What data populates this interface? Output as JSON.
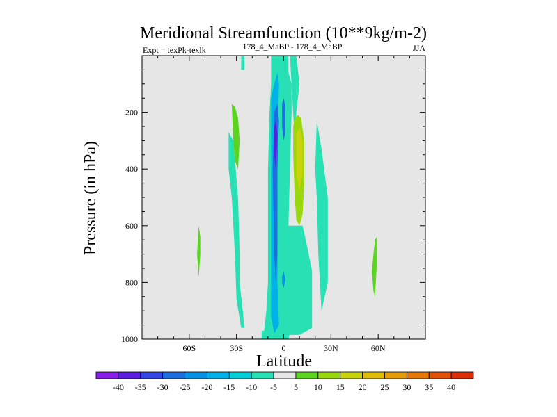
{
  "chart_data": {
    "type": "heatmap",
    "title": "Meridional Streamfunction (10**9kg/m-2)",
    "subtitle_left": "Expt = texPk-texlk",
    "subtitle_center": "178_4_MaBP - 178_4_MaBP",
    "subtitle_right": "JJA",
    "xlabel": "Latitude",
    "ylabel": "Pressure (in hPa)",
    "xlim": [
      -90,
      90
    ],
    "ylim": [
      1000,
      0
    ],
    "x_ticks": [
      {
        "value": -60,
        "label": "60S"
      },
      {
        "value": -30,
        "label": "30S"
      },
      {
        "value": 0,
        "label": "0"
      },
      {
        "value": 30,
        "label": "30N"
      },
      {
        "value": 60,
        "label": "60N"
      }
    ],
    "y_ticks": [
      {
        "value": 200,
        "label": "200"
      },
      {
        "value": 400,
        "label": "400"
      },
      {
        "value": 600,
        "label": "600"
      },
      {
        "value": 800,
        "label": "800"
      },
      {
        "value": 1000,
        "label": "1000"
      }
    ],
    "background_color": "#e6e6e6",
    "colorbar": {
      "levels": [
        -40,
        -35,
        -30,
        -25,
        -20,
        -15,
        -10,
        -5,
        5,
        10,
        15,
        20,
        25,
        30,
        35,
        40
      ],
      "labels": [
        "-40",
        "-35",
        "-30",
        "-25",
        "-20",
        "-15",
        "-10",
        "-5",
        "5",
        "10",
        "15",
        "20",
        "25",
        "30",
        "35",
        "40"
      ],
      "colors": [
        "#8a1de8",
        "#5b1ee0",
        "#3446e6",
        "#1d6fe0",
        "#0592e6",
        "#00b2e8",
        "#00cfd8",
        "#27e0b4",
        "#e6e6e6",
        "#5ad41e",
        "#9ad80e",
        "#c8d30c",
        "#e0bb08",
        "#e69c08",
        "#e67808",
        "#e45208",
        "#de2e08"
      ]
    },
    "regions": [
      {
        "name": "central-southern-band",
        "level": -5,
        "points": [
          [
            -13,
            1000
          ],
          [
            -11,
            900
          ],
          [
            -10,
            800
          ],
          [
            -10,
            600
          ],
          [
            -10,
            400
          ],
          [
            -9,
            200
          ],
          [
            -8,
            100
          ],
          [
            -8,
            0
          ],
          [
            3,
            0
          ],
          [
            3,
            60
          ],
          [
            5,
            100
          ],
          [
            5,
            200
          ],
          [
            4,
            400
          ],
          [
            3,
            600
          ],
          [
            4,
            800
          ],
          [
            5,
            950
          ],
          [
            3,
            1000
          ]
        ]
      },
      {
        "name": "tail-top",
        "level": -5,
        "points": [
          [
            -27,
            0
          ],
          [
            -25,
            0
          ],
          [
            -25,
            50
          ],
          [
            -27,
            50
          ]
        ]
      },
      {
        "name": "tail-bottom-left",
        "level": -5,
        "points": [
          [
            -14,
            1000
          ],
          [
            -8,
            1000
          ],
          [
            -8,
            970
          ],
          [
            -14,
            970
          ]
        ]
      },
      {
        "name": "broad-north-ns",
        "level": -5,
        "points": [
          [
            0,
            600
          ],
          [
            12,
            600
          ],
          [
            14,
            650
          ],
          [
            18,
            760
          ],
          [
            18,
            850
          ],
          [
            18,
            960
          ],
          [
            10,
            985
          ],
          [
            2,
            985
          ]
        ]
      },
      {
        "name": "south-strip",
        "level": -5,
        "points": [
          [
            -35,
            270
          ],
          [
            -32,
            300
          ],
          [
            -29,
            500
          ],
          [
            -28,
            700
          ],
          [
            -28,
            800
          ],
          [
            -26,
            900
          ],
          [
            -25,
            960
          ],
          [
            -27,
            960
          ],
          [
            -30,
            860
          ],
          [
            -31,
            700
          ],
          [
            -33,
            500
          ],
          [
            -35,
            400
          ]
        ]
      },
      {
        "name": "north-wing-upper",
        "level": -5,
        "points": [
          [
            4,
            0
          ],
          [
            8,
            0
          ],
          [
            10,
            100
          ],
          [
            8,
            200
          ],
          [
            7,
            300
          ]
        ]
      },
      {
        "name": "north-strip-right",
        "level": -5,
        "points": [
          [
            21,
            230
          ],
          [
            24,
            330
          ],
          [
            28,
            500
          ],
          [
            28,
            700
          ],
          [
            28,
            800
          ],
          [
            26,
            850
          ],
          [
            24,
            900
          ],
          [
            22,
            700
          ],
          [
            21,
            500
          ],
          [
            20,
            400
          ]
        ]
      },
      {
        "name": "core-mid",
        "level": -15,
        "points": [
          [
            -8,
            150
          ],
          [
            -6,
            100
          ],
          [
            -4,
            60
          ],
          [
            -3,
            100
          ],
          [
            -4,
            300
          ],
          [
            -4,
            800
          ],
          [
            -3,
            950
          ],
          [
            -6,
            980
          ],
          [
            -8,
            920
          ],
          [
            -8,
            700
          ],
          [
            -8,
            400
          ],
          [
            -8,
            200
          ]
        ]
      },
      {
        "name": "core-deep",
        "level": -25,
        "points": [
          [
            -6,
            200
          ],
          [
            -4,
            170
          ],
          [
            -3,
            230
          ],
          [
            -4,
            400
          ],
          [
            -4,
            700
          ],
          [
            -5,
            800
          ],
          [
            -6,
            700
          ],
          [
            -7,
            400
          ]
        ]
      },
      {
        "name": "core-strong",
        "level": -35,
        "points": [
          [
            -6,
            250
          ],
          [
            -5,
            230
          ],
          [
            -4,
            280
          ],
          [
            -5,
            400
          ],
          [
            -6,
            350
          ]
        ]
      },
      {
        "name": "equator-deep",
        "level": -25,
        "points": [
          [
            -1,
            170
          ],
          [
            0,
            150
          ],
          [
            1,
            180
          ],
          [
            1,
            270
          ],
          [
            0,
            300
          ],
          [
            -1,
            250
          ]
        ]
      },
      {
        "name": "equator-bottom",
        "level": -20,
        "points": [
          [
            -1,
            780
          ],
          [
            0,
            760
          ],
          [
            1,
            790
          ],
          [
            0,
            820
          ],
          [
            -1,
            800
          ]
        ]
      },
      {
        "name": "nh-cell",
        "level": 10,
        "points": [
          [
            6,
            250
          ],
          [
            7,
            220
          ],
          [
            9,
            210
          ],
          [
            11,
            220
          ],
          [
            13,
            300
          ],
          [
            13,
            450
          ],
          [
            12,
            560
          ],
          [
            10,
            600
          ],
          [
            8,
            580
          ],
          [
            7,
            500
          ],
          [
            6,
            350
          ]
        ]
      },
      {
        "name": "nh-cell-inner",
        "level": 15,
        "points": [
          [
            8,
            280
          ],
          [
            10,
            250
          ],
          [
            12,
            300
          ],
          [
            12,
            420
          ],
          [
            10,
            480
          ],
          [
            8,
            420
          ]
        ]
      },
      {
        "name": "sh-upper-green",
        "level": 5,
        "points": [
          [
            -33,
            170
          ],
          [
            -31,
            180
          ],
          [
            -29,
            220
          ],
          [
            -28,
            300
          ],
          [
            -29,
            400
          ],
          [
            -31,
            370
          ],
          [
            -32,
            300
          ]
        ]
      },
      {
        "name": "sh-lower-green",
        "level": 5,
        "points": [
          [
            -54,
            600
          ],
          [
            -53,
            640
          ],
          [
            -53,
            700
          ],
          [
            -54,
            780
          ],
          [
            -55,
            700
          ]
        ]
      },
      {
        "name": "nh-lower-green",
        "level": 5,
        "points": [
          [
            56,
            760
          ],
          [
            57,
            700
          ],
          [
            58,
            650
          ],
          [
            59,
            640
          ],
          [
            59,
            750
          ],
          [
            58,
            850
          ],
          [
            57,
            830
          ]
        ]
      }
    ]
  }
}
